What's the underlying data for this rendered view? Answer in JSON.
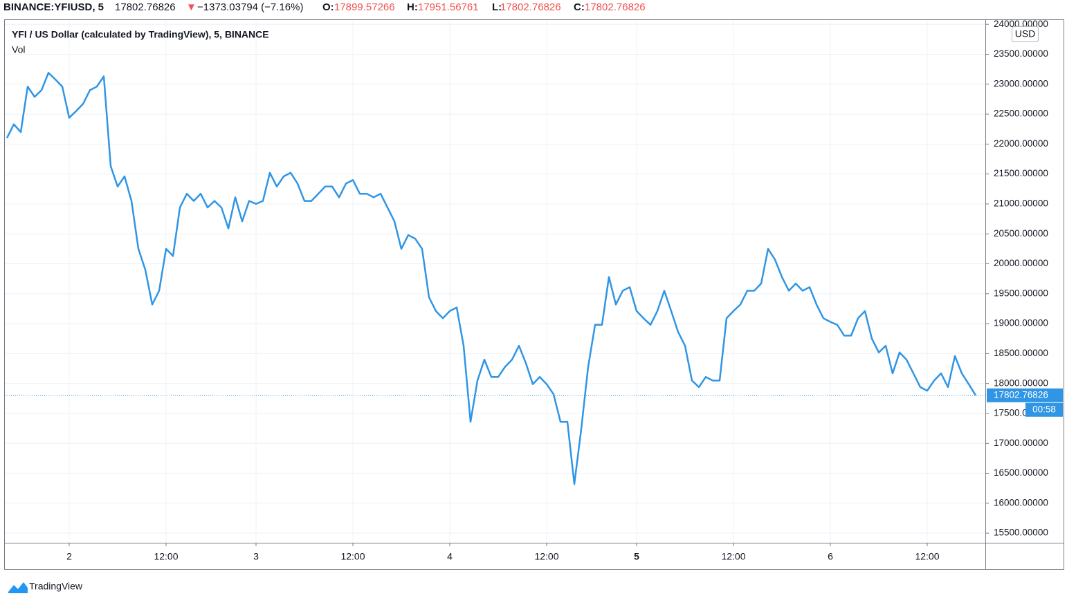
{
  "header": {
    "symbol": "BINANCE:YFIUSD, 5",
    "last": "17802.76826",
    "arrow": "▼",
    "change": "−1373.03794 (−7.16%)",
    "open_label": "O:",
    "open": "17899.57266",
    "high_label": "H:",
    "high": "17951.56761",
    "low_label": "L:",
    "low": "17802.76826",
    "close_label": "C:",
    "close": "17802.76826"
  },
  "brand": "TradingView",
  "chart_data": {
    "type": "line",
    "title": "YFI / US Dollar (calculated by TradingView), 5, BINANCE",
    "subtitle": "Vol",
    "y_unit": "USD",
    "countdown": "00:58",
    "grid": true,
    "categories": [
      null,
      null,
      null,
      null,
      null,
      null,
      null,
      null,
      null,
      "2",
      null,
      null,
      null,
      null,
      null,
      null,
      null,
      null,
      null,
      null,
      null,
      null,
      null,
      "12:00",
      null,
      null,
      null,
      null,
      null,
      null,
      null,
      null,
      null,
      null,
      null,
      null,
      "3",
      null,
      null,
      null,
      null,
      null,
      null,
      null,
      null,
      null,
      null,
      null,
      null,
      null,
      "12:00",
      null,
      null,
      null,
      null,
      null,
      null,
      null,
      null,
      null,
      null,
      null,
      null,
      null,
      "4",
      null,
      null,
      null,
      null,
      null,
      null,
      null,
      null,
      null,
      null,
      null,
      null,
      null,
      "12:00",
      null,
      null,
      null,
      null,
      null,
      null,
      null,
      null,
      null,
      null,
      null,
      null,
      "5",
      null,
      null,
      null,
      null,
      null,
      null,
      null,
      null,
      null,
      null,
      null,
      null,
      null,
      "12:00",
      null,
      null,
      null,
      null,
      null,
      null,
      null,
      null,
      null,
      null,
      null,
      null,
      null,
      "6",
      null,
      null,
      null,
      null,
      null,
      null,
      null,
      null,
      null,
      null,
      null,
      null,
      null,
      "12:00",
      null,
      null,
      null,
      null,
      null,
      null,
      null
    ],
    "series": [
      {
        "name": "YFI / US Dollar",
        "color": "#2f95e4",
        "values": [
          22100,
          22330,
          22200,
          22960,
          22790,
          22900,
          23190,
          23080,
          22960,
          22440,
          22550,
          22670,
          22900,
          22960,
          23130,
          21630,
          21290,
          21460,
          21050,
          20250,
          19900,
          19320,
          19550,
          20250,
          20130,
          20940,
          21170,
          21050,
          21170,
          20940,
          21050,
          20940,
          20590,
          21110,
          20710,
          21050,
          21000,
          21050,
          21520,
          21290,
          21460,
          21520,
          21340,
          21050,
          21050,
          21170,
          21290,
          21290,
          21110,
          21340,
          21400,
          21170,
          21170,
          21110,
          21170,
          20940,
          20710,
          20250,
          20480,
          20420,
          20250,
          19440,
          19210,
          19090,
          19210,
          19270,
          18630,
          17360,
          18050,
          18400,
          18110,
          18110,
          18280,
          18400,
          18630,
          18340,
          17990,
          18110,
          17990,
          17820,
          17360,
          17360,
          16320,
          17240,
          18280,
          18980,
          18980,
          19780,
          19320,
          19550,
          19610,
          19210,
          19090,
          18980,
          19210,
          19550,
          19210,
          18860,
          18630,
          18050,
          17940,
          18110,
          18050,
          18050,
          19090,
          19210,
          19320,
          19550,
          19550,
          19670,
          20250,
          20070,
          19780,
          19550,
          19670,
          19550,
          19610,
          19320,
          19090,
          19030,
          18980,
          18800,
          18800,
          19090,
          19210,
          18750,
          18520,
          18630,
          18170,
          18520,
          18400,
          18170,
          17940,
          17880,
          18050,
          18170,
          17940,
          18460,
          18170,
          17990,
          17802.76826
        ]
      }
    ],
    "ylim": [
      15340,
      24060
    ],
    "yticks": [
      {
        "value": 24000,
        "label": "24000.00000"
      },
      {
        "value": 23500,
        "label": "23500.00000"
      },
      {
        "value": 23000,
        "label": "23000.00000"
      },
      {
        "value": 22500,
        "label": "22500.00000"
      },
      {
        "value": 22000,
        "label": "22000.00000"
      },
      {
        "value": 21500,
        "label": "21500.00000"
      },
      {
        "value": 21000,
        "label": "21000.00000"
      },
      {
        "value": 20500,
        "label": "20500.00000"
      },
      {
        "value": 20000,
        "label": "20000.00000"
      },
      {
        "value": 19500,
        "label": "19500.00000"
      },
      {
        "value": 19000,
        "label": "19000.00000"
      },
      {
        "value": 18500,
        "label": "18500.00000"
      },
      {
        "value": 18000,
        "label": "18000.00000"
      },
      {
        "value": 17500,
        "label": "17500.00000"
      },
      {
        "value": 17000,
        "label": "17000.00000"
      },
      {
        "value": 16500,
        "label": "16500.00000"
      },
      {
        "value": 16000,
        "label": "16000.00000"
      },
      {
        "value": 15500,
        "label": "15500.00000"
      }
    ]
  }
}
